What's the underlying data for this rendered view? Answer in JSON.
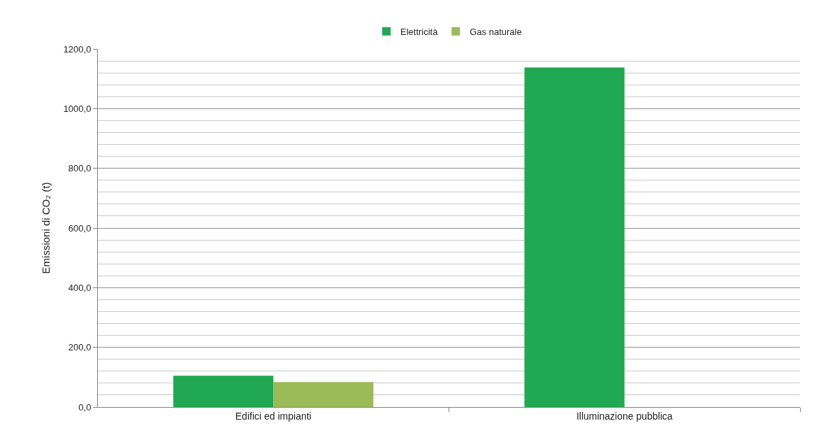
{
  "chart_data": {
    "type": "bar",
    "ylabel": "Emissioni di CO₂ (t)",
    "categories": [
      "Edifici ed impianti",
      "Illuminazione pubblica"
    ],
    "series": [
      {
        "name": "Elettricità",
        "color": "#21a852",
        "values": [
          105,
          1138
        ]
      },
      {
        "name": "Gas naturale",
        "color": "#9bbb59",
        "values": [
          84,
          null
        ]
      }
    ],
    "ylim": [
      0,
      1200
    ],
    "yticks": [
      {
        "value": 0,
        "label": "0,0"
      },
      {
        "value": 200,
        "label": "200,0"
      },
      {
        "value": 400,
        "label": "400,0"
      },
      {
        "value": 600,
        "label": "600,0"
      },
      {
        "value": 800,
        "label": "800,0"
      },
      {
        "value": 1000,
        "label": "1000,0"
      },
      {
        "value": 1200,
        "label": "1200,0"
      }
    ],
    "grid": "y",
    "legend": "top"
  }
}
